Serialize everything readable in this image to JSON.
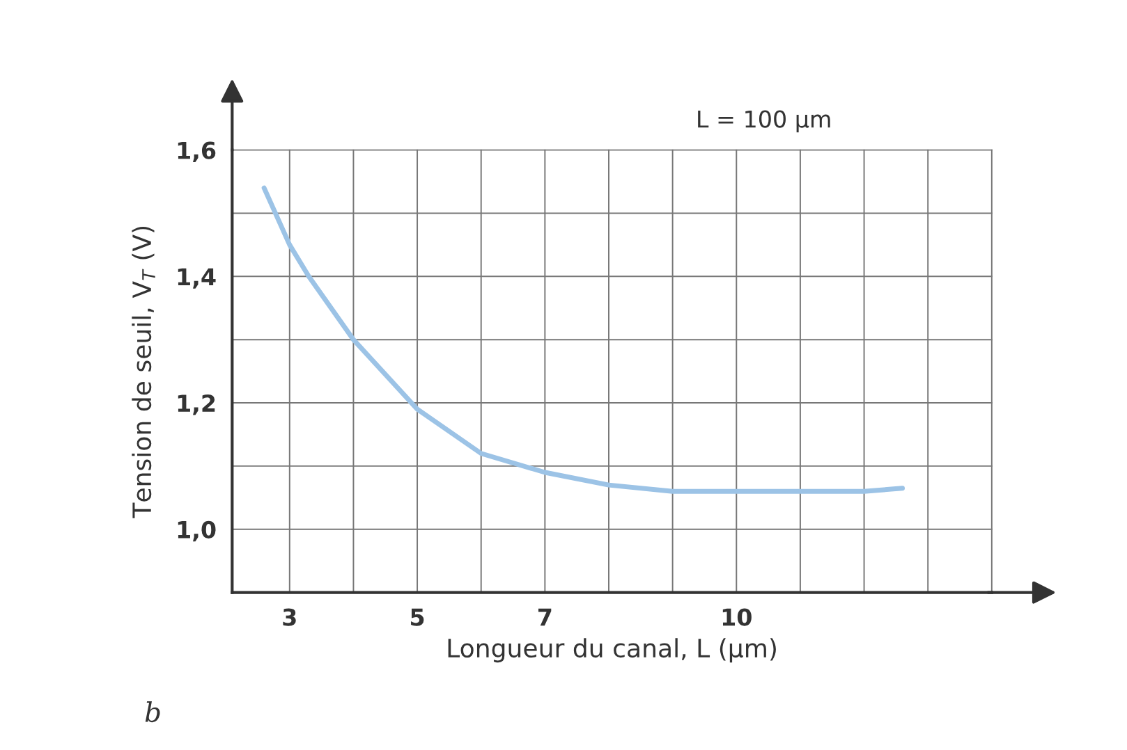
{
  "chart_data": {
    "type": "line",
    "xlabel": "Longueur du canal, L (µm)",
    "ylabel": "Tension de seuil, V$_{T}$ (V)",
    "annotations": [
      "L = 100 µm",
      "b"
    ],
    "x": [
      2.6,
      3,
      3.3,
      4,
      5,
      6,
      7,
      8,
      9,
      10,
      11,
      12,
      12.6
    ],
    "series": [
      {
        "color": "#9cc3e6",
        "values": [
          1.54,
          1.45,
          1.4,
          1.3,
          1.19,
          1.12,
          1.09,
          1.07,
          1.06,
          1.06,
          1.06,
          1.06,
          1.065
        ]
      }
    ],
    "xlim": [
      2.1,
      14
    ],
    "xticks": [
      3,
      {
        "value": 4,
        "label": null
      },
      5,
      {
        "value": 6,
        "label": null
      },
      7,
      {
        "value": 8,
        "label": null
      },
      {
        "value": 9,
        "label": null
      },
      10,
      {
        "value": 11,
        "label": null
      },
      {
        "value": 12,
        "label": null
      },
      {
        "value": 13,
        "label": null
      },
      {
        "value": 14,
        "label": null
      }
    ],
    "ylim": [
      0.9,
      1.6
    ],
    "yticks": [
      {
        "value": 0.9,
        "label": null
      },
      {
        "value": 1.0,
        "label": "1,0"
      },
      {
        "value": 1.1,
        "label": null
      },
      {
        "value": 1.2,
        "label": "1,2"
      },
      {
        "value": 1.3,
        "label": null
      },
      {
        "value": 1.4,
        "label": "1,4"
      },
      {
        "value": 1.5,
        "label": null
      },
      {
        "value": 1.6,
        "label": "1,6"
      }
    ],
    "grid": true,
    "marker": "none",
    "line_style": "solid"
  }
}
